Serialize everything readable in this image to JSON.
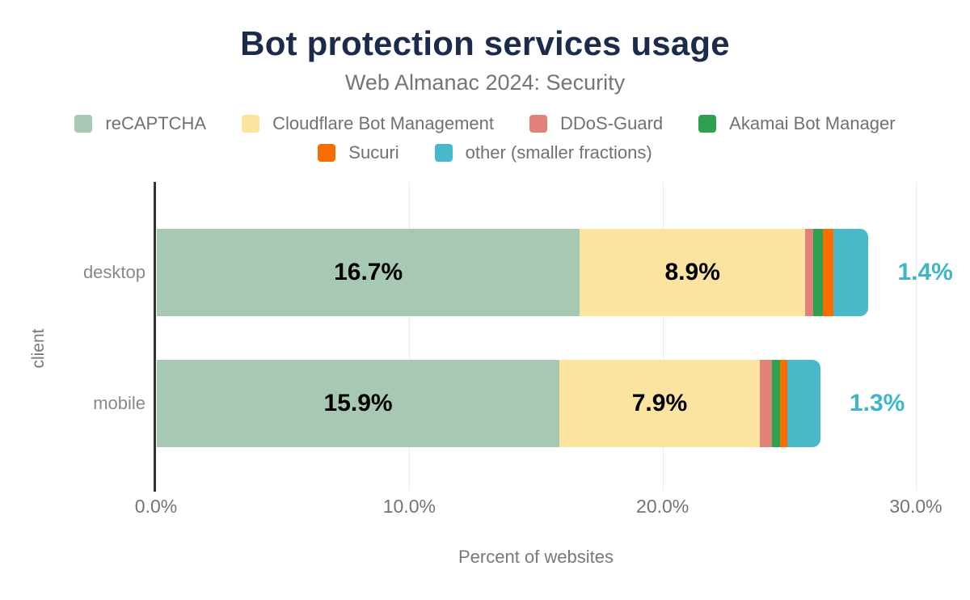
{
  "chart_data": {
    "type": "bar",
    "variant": "horizontal-stacked",
    "title": "Bot protection services usage",
    "subtitle": "Web Almanac 2024: Security",
    "categories": [
      "desktop",
      "mobile"
    ],
    "series": [
      {
        "name": "reCAPTCHA",
        "color": "#a7c9b4",
        "values": [
          16.7,
          15.9
        ],
        "labels": [
          "16.7%",
          "15.9%"
        ],
        "label_placement": "inside"
      },
      {
        "name": "Cloudflare Bot Management",
        "color": "#fbe49f",
        "values": [
          8.9,
          7.9
        ],
        "labels": [
          "8.9%",
          "7.9%"
        ],
        "label_placement": "inside"
      },
      {
        "name": "DDoS-Guard",
        "color": "#e2817a",
        "values": [
          0.3,
          0.5
        ],
        "labels": [
          "",
          ""
        ],
        "label_placement": "none"
      },
      {
        "name": "Akamai Bot Manager",
        "color": "#2da14f",
        "values": [
          0.4,
          0.3
        ],
        "labels": [
          "",
          ""
        ],
        "label_placement": "none"
      },
      {
        "name": "Sucuri",
        "color": "#fa6e00",
        "values": [
          0.4,
          0.3
        ],
        "labels": [
          "",
          ""
        ],
        "label_placement": "none"
      },
      {
        "name": "other (smaller fractions)",
        "color": "#49b9c9",
        "values": [
          1.4,
          1.3
        ],
        "labels": [
          "1.4%",
          "1.3%"
        ],
        "label_placement": "outside"
      }
    ],
    "x_axis": {
      "label": "Percent of websites",
      "min": 0,
      "max": 30,
      "ticks": [
        {
          "v": 0,
          "label": "0.0%"
        },
        {
          "v": 10,
          "label": "10.0%"
        },
        {
          "v": 20,
          "label": "20.0%"
        },
        {
          "v": 30,
          "label": "30.0%"
        }
      ]
    },
    "y_axis": {
      "label": "client"
    },
    "legend": {
      "position": "top",
      "rows": [
        [
          "reCAPTCHA",
          "Cloudflare Bot Management",
          "DDoS-Guard",
          "Akamai Bot Manager"
        ],
        [
          "Sucuri",
          "other (smaller fractions)"
        ]
      ]
    },
    "style": {
      "grid": true,
      "title_color": "#1c2b4a",
      "muted_text_color": "#75797e",
      "inside_label_color": "#000000",
      "outside_label_color": "#3eb5c8",
      "axis_line_color": "#333333",
      "gridline_color": "#ebebeb"
    }
  }
}
